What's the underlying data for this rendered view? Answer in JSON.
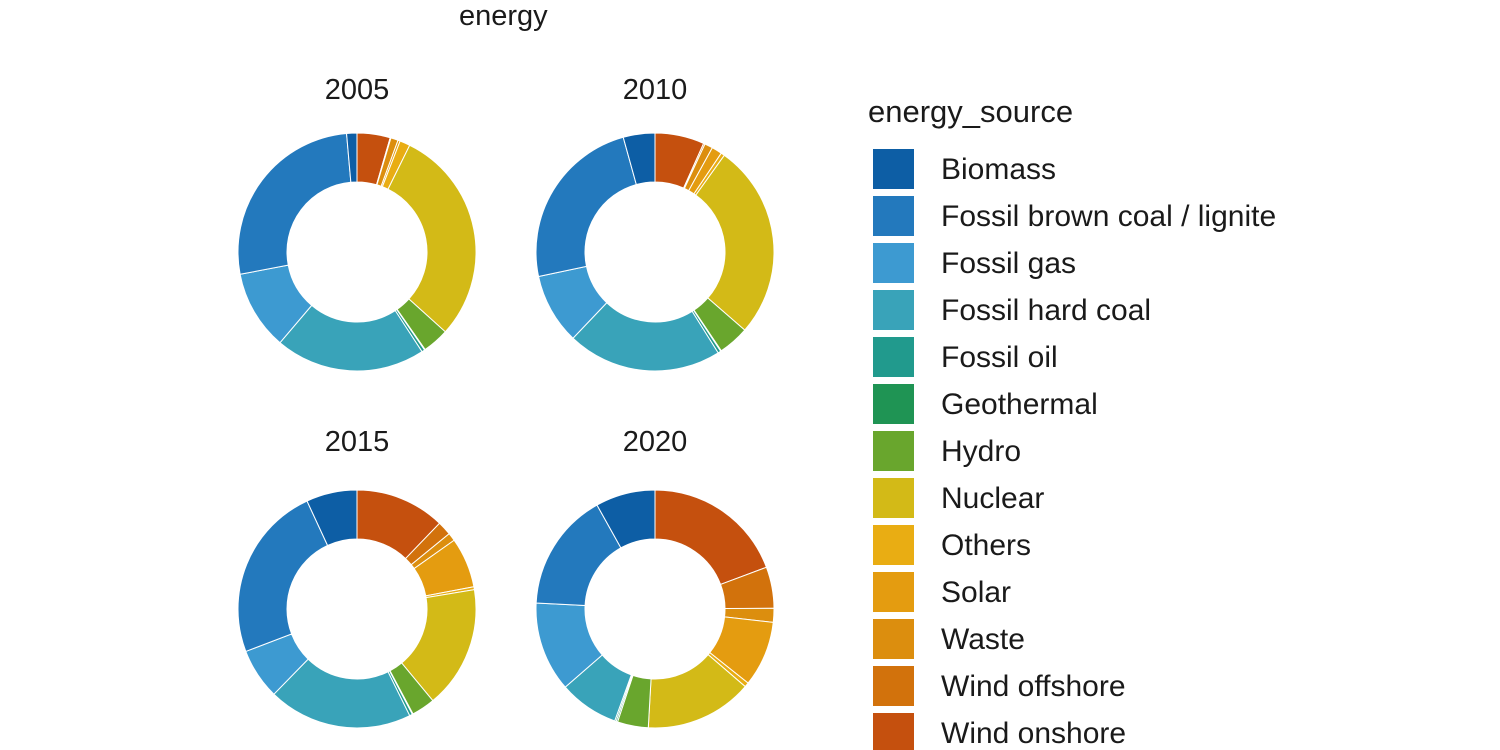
{
  "title": "energy",
  "legend": {
    "title": "energy_source",
    "items": [
      {
        "label": "Biomass",
        "color": "#0d5ea5"
      },
      {
        "label": "Fossil brown coal / lignite",
        "color": "#2379bd"
      },
      {
        "label": "Fossil gas",
        "color": "#3d9ad1"
      },
      {
        "label": "Fossil hard coal",
        "color": "#39a3b9"
      },
      {
        "label": "Fossil oil",
        "color": "#219a8d"
      },
      {
        "label": "Geothermal",
        "color": "#1f9454"
      },
      {
        "label": "Hydro",
        "color": "#69a62d"
      },
      {
        "label": "Nuclear",
        "color": "#d3ba17"
      },
      {
        "label": "Others",
        "color": "#e9ad13"
      },
      {
        "label": "Solar",
        "color": "#e49c10"
      },
      {
        "label": "Waste",
        "color": "#dc8e0e"
      },
      {
        "label": "Wind offshore",
        "color": "#d2720c"
      },
      {
        "label": "Wind onshore",
        "color": "#c5500e"
      }
    ]
  },
  "chart_data": {
    "type": "pie",
    "subtype": "donut, 2x2 faceted by year",
    "title": "energy",
    "legend_title": "energy_source",
    "unit": "percent share (estimated from segment angles)",
    "categories": [
      "Biomass",
      "Fossil brown coal / lignite",
      "Fossil gas",
      "Fossil hard coal",
      "Fossil oil",
      "Geothermal",
      "Hydro",
      "Nuclear",
      "Others",
      "Solar",
      "Waste",
      "Wind offshore",
      "Wind onshore"
    ],
    "colors": [
      "#0d5ea5",
      "#2379bd",
      "#3d9ad1",
      "#39a3b9",
      "#219a8d",
      "#1f9454",
      "#69a62d",
      "#d3ba17",
      "#e9ad13",
      "#e49c10",
      "#dc8e0e",
      "#d2720c",
      "#c5500e"
    ],
    "facets": [
      {
        "year": "2005",
        "values": [
          1.4,
          26.6,
          10.8,
          20.4,
          0.4,
          0.1,
          3.6,
          29.4,
          1.4,
          0.3,
          1.0,
          0.1,
          4.5
        ]
      },
      {
        "year": "2010",
        "values": [
          4.3,
          24.0,
          9.6,
          21.0,
          0.4,
          0.1,
          4.2,
          26.5,
          0.5,
          1.4,
          1.1,
          0.2,
          6.7
        ]
      },
      {
        "year": "2015",
        "values": [
          6.9,
          23.9,
          6.9,
          19.6,
          0.4,
          0.1,
          3.2,
          16.6,
          0.4,
          6.8,
          1.1,
          1.9,
          12.2
        ]
      },
      {
        "year": "2020",
        "values": [
          8.1,
          16.1,
          12.2,
          8.1,
          0.2,
          0.2,
          4.2,
          14.6,
          0.6,
          8.9,
          1.9,
          5.6,
          19.3
        ]
      }
    ],
    "layout": {
      "grid": "2 columns x 2 rows of donuts",
      "start_angle_deg": 0,
      "winding": "categories stack counterclockwise from 12 o'clock (reverse-alphabetical clockwise)",
      "donut_hole_ratio": 0.59,
      "legend_position": "right",
      "background": "#ffffff"
    }
  }
}
